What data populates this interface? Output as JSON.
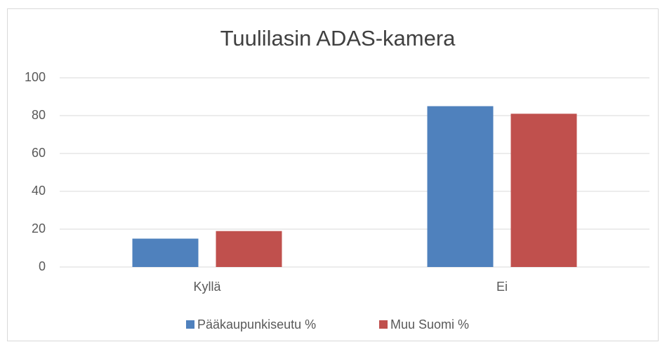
{
  "chart_data": {
    "type": "bar",
    "title": "Tuulilasin ADAS-kamera",
    "categories": [
      "Kyllä",
      "Ei"
    ],
    "series": [
      {
        "name": "Pääkaupunkiseutu %",
        "color": "#4f81bd",
        "values": [
          15,
          85
        ]
      },
      {
        "name": "Muu Suomi %",
        "color": "#c0504d",
        "values": [
          19,
          81
        ]
      }
    ],
    "ylim": [
      0,
      100
    ],
    "yticks": [
      0,
      20,
      40,
      60,
      80,
      100
    ],
    "grid": true,
    "legend": "bottom"
  }
}
